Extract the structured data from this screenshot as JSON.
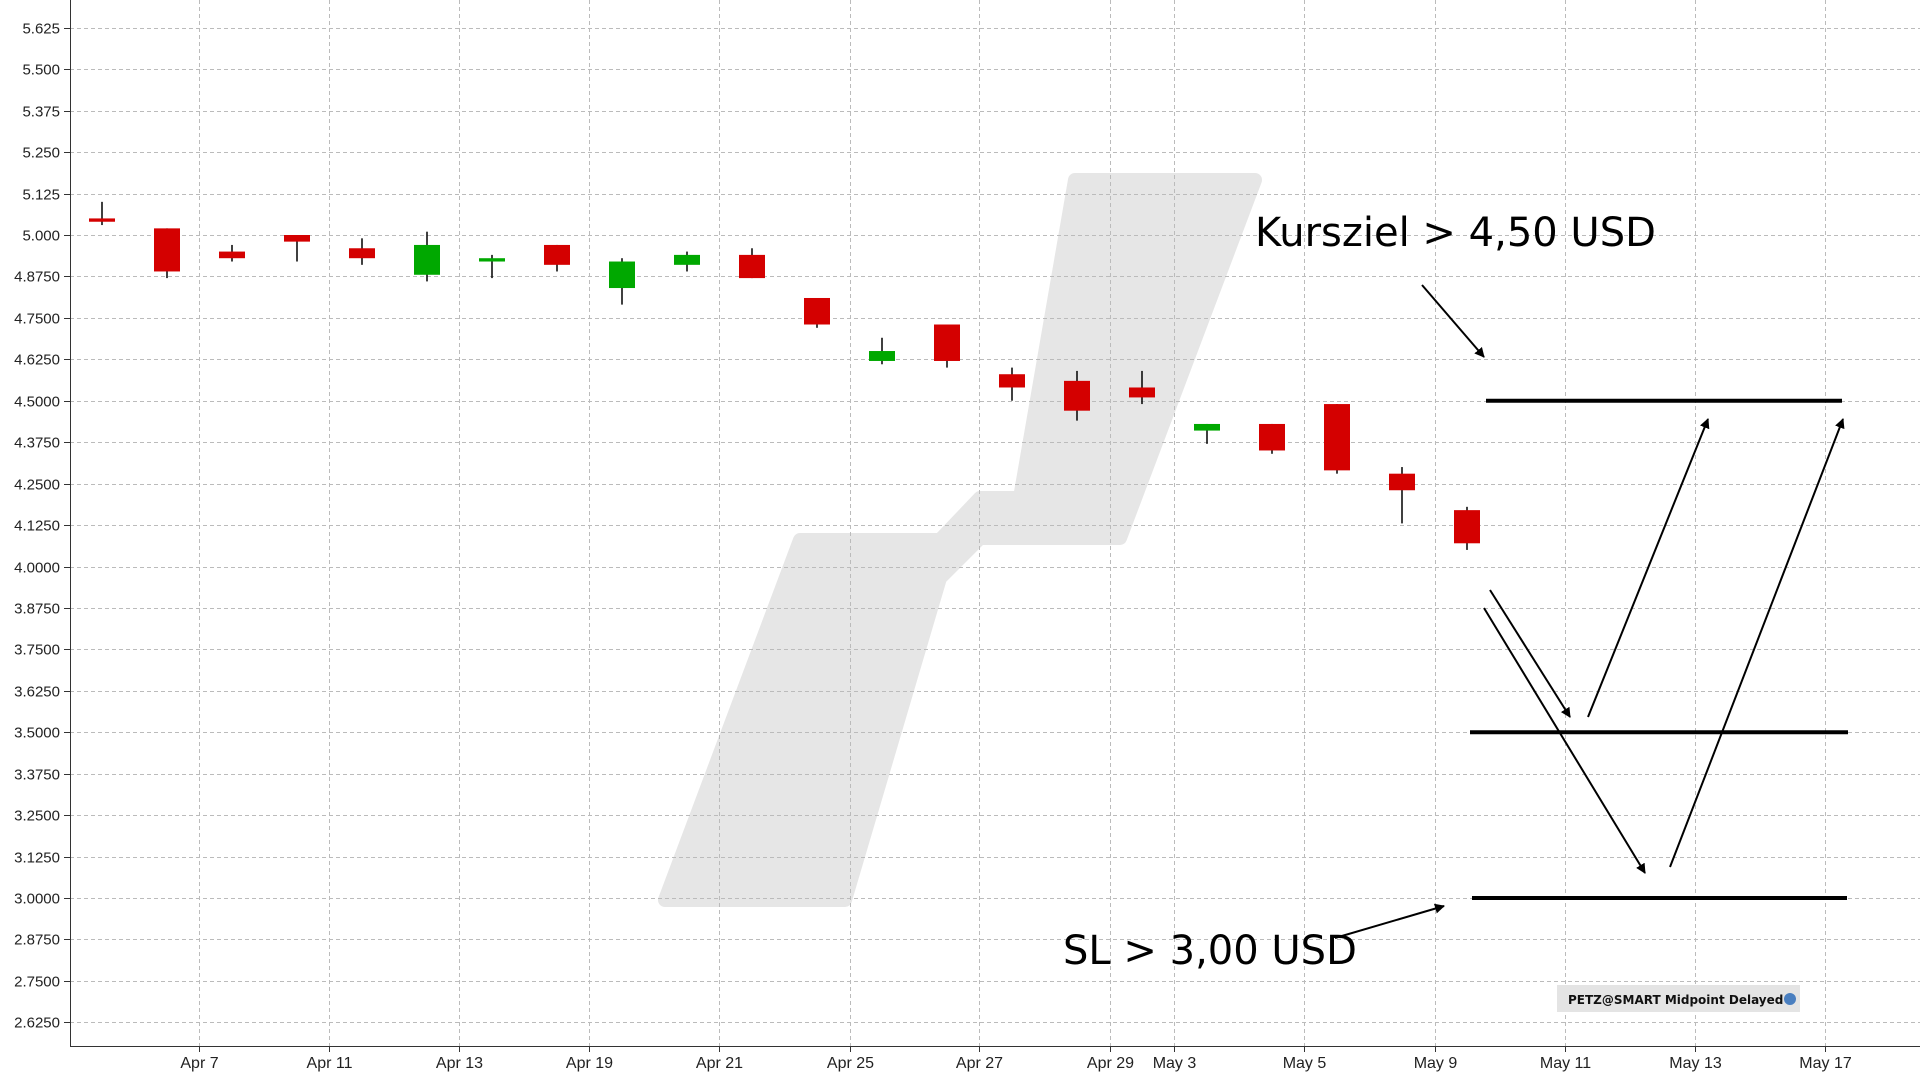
{
  "chart_data": {
    "type": "candlestick",
    "y_ticks": [
      "5.625",
      "5.500",
      "5.375",
      "5.250",
      "5.125",
      "5.000",
      "4.8750",
      "4.7500",
      "4.6250",
      "4.5000",
      "4.3750",
      "4.2500",
      "4.1250",
      "4.0000",
      "3.8750",
      "3.7500",
      "3.6250",
      "3.5000",
      "3.3750",
      "3.2500",
      "3.1250",
      "3.0000",
      "2.8750",
      "2.7500",
      "2.6250"
    ],
    "ylim": [
      2.57,
      5.67
    ],
    "x_ticks": [
      "Apr 7",
      "Apr 11",
      "Apr 13",
      "Apr 19",
      "Apr 21",
      "Apr 25",
      "Apr 27",
      "Apr 29",
      "May 3",
      "May 5",
      "May 9",
      "May 11",
      "May 13",
      "May 17"
    ],
    "grid": true,
    "candles": [
      {
        "o": 5.05,
        "h": 5.1,
        "l": 5.03,
        "c": 5.04
      },
      {
        "o": 5.02,
        "h": 5.02,
        "l": 4.87,
        "c": 4.89
      },
      {
        "o": 4.95,
        "h": 4.97,
        "l": 4.92,
        "c": 4.93
      },
      {
        "o": 5.0,
        "h": 5.0,
        "l": 4.92,
        "c": 4.98
      },
      {
        "o": 4.96,
        "h": 4.99,
        "l": 4.91,
        "c": 4.93
      },
      {
        "o": 4.88,
        "h": 5.01,
        "l": 4.86,
        "c": 4.97
      },
      {
        "o": 4.92,
        "h": 4.94,
        "l": 4.87,
        "c": 4.93
      },
      {
        "o": 4.97,
        "h": 4.97,
        "l": 4.89,
        "c": 4.91
      },
      {
        "o": 4.84,
        "h": 4.93,
        "l": 4.79,
        "c": 4.92
      },
      {
        "o": 4.91,
        "h": 4.95,
        "l": 4.89,
        "c": 4.94
      },
      {
        "o": 4.94,
        "h": 4.96,
        "l": 4.87,
        "c": 4.87
      },
      {
        "o": 4.81,
        "h": 4.81,
        "l": 4.72,
        "c": 4.73
      },
      {
        "o": 4.62,
        "h": 4.69,
        "l": 4.61,
        "c": 4.65
      },
      {
        "o": 4.73,
        "h": 4.73,
        "l": 4.6,
        "c": 4.62
      },
      {
        "o": 4.58,
        "h": 4.6,
        "l": 4.5,
        "c": 4.54
      },
      {
        "o": 4.56,
        "h": 4.59,
        "l": 4.44,
        "c": 4.47
      },
      {
        "o": 4.54,
        "h": 4.59,
        "l": 4.49,
        "c": 4.51
      },
      {
        "o": 4.41,
        "h": 4.43,
        "l": 4.37,
        "c": 4.43
      },
      {
        "o": 4.43,
        "h": 4.43,
        "l": 4.34,
        "c": 4.35
      },
      {
        "o": 4.49,
        "h": 4.49,
        "l": 4.28,
        "c": 4.29
      },
      {
        "o": 4.28,
        "h": 4.3,
        "l": 4.13,
        "c": 4.23
      },
      {
        "o": 4.17,
        "h": 4.18,
        "l": 4.05,
        "c": 4.07
      }
    ],
    "levels": [
      4.5,
      3.5,
      3.0
    ],
    "annotations": [
      {
        "text": "Kursziel > 4,50 USD"
      },
      {
        "text": "SL > 3,00 USD"
      }
    ],
    "colors": {
      "up": "#00a800",
      "down": "#d40000",
      "grid": "#bbbbbb",
      "watermark": "#e6e6e6"
    }
  },
  "badge": {
    "text": "PETZ@SMART Midpoint Delayed"
  }
}
